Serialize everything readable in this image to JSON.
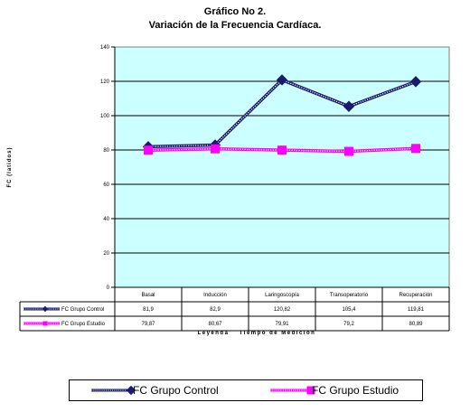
{
  "chart_data": {
    "type": "line",
    "title": "Gráfico No 2.",
    "subtitle": "Variación de la Frecuencia  Cardíaca.",
    "ylabel": "FC (latidos)",
    "xlabel": "Tiempo de Medición",
    "table_label": "Leyenda",
    "ylim": [
      0,
      140
    ],
    "yticks": [
      "0",
      "20",
      "40",
      "60",
      "80",
      "100",
      "120",
      "140"
    ],
    "categories": [
      "Basal",
      "Inducción",
      "Laringoscopía",
      "Transoperatorio",
      "Recuperación"
    ],
    "series": [
      {
        "name": "FC Grupo Control",
        "values": [
          81.9,
          82.9,
          120.82,
          105.4,
          119.81
        ],
        "labels": [
          "81,9",
          "82,9",
          "120,82",
          "105,4",
          "119,81"
        ],
        "color": "#1a1a6e",
        "marker": "diamond"
      },
      {
        "name": "FC Grupo Estudio",
        "values": [
          79.87,
          80.67,
          79.91,
          79.2,
          80.89
        ],
        "labels": [
          "79,87",
          "80,67",
          "79,91",
          "79,2",
          "80,89"
        ],
        "color": "#ff00ff",
        "marker": "square"
      }
    ],
    "plot_background": "#ccffff",
    "grid": true,
    "legend_position": "bottom"
  }
}
